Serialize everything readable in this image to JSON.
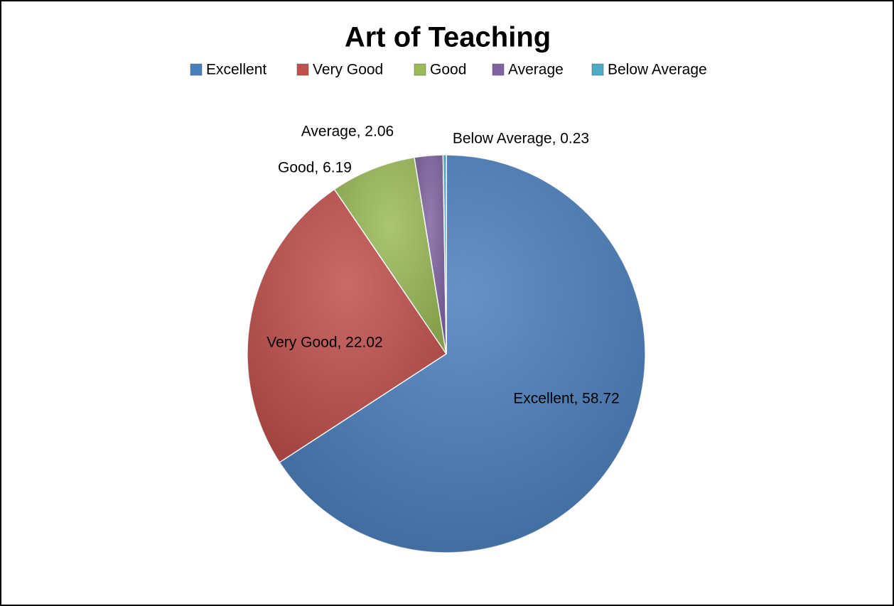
{
  "chart_data": {
    "type": "pie",
    "title": "Art of Teaching",
    "categories": [
      "Excellent",
      "Very Good",
      "Good",
      "Average",
      "Below Average"
    ],
    "values": [
      58.72,
      22.02,
      6.19,
      2.06,
      0.23
    ],
    "value_labels": [
      "Excellent, 58.72",
      "Very Good, 22.02",
      "Good, 6.19",
      "Average, 2.06",
      "Below Average, 0.23"
    ],
    "colors": [
      "#4a7ebb",
      "#c0504d",
      "#9bbb59",
      "#8064a2",
      "#4bacc6"
    ],
    "legend": "top"
  }
}
